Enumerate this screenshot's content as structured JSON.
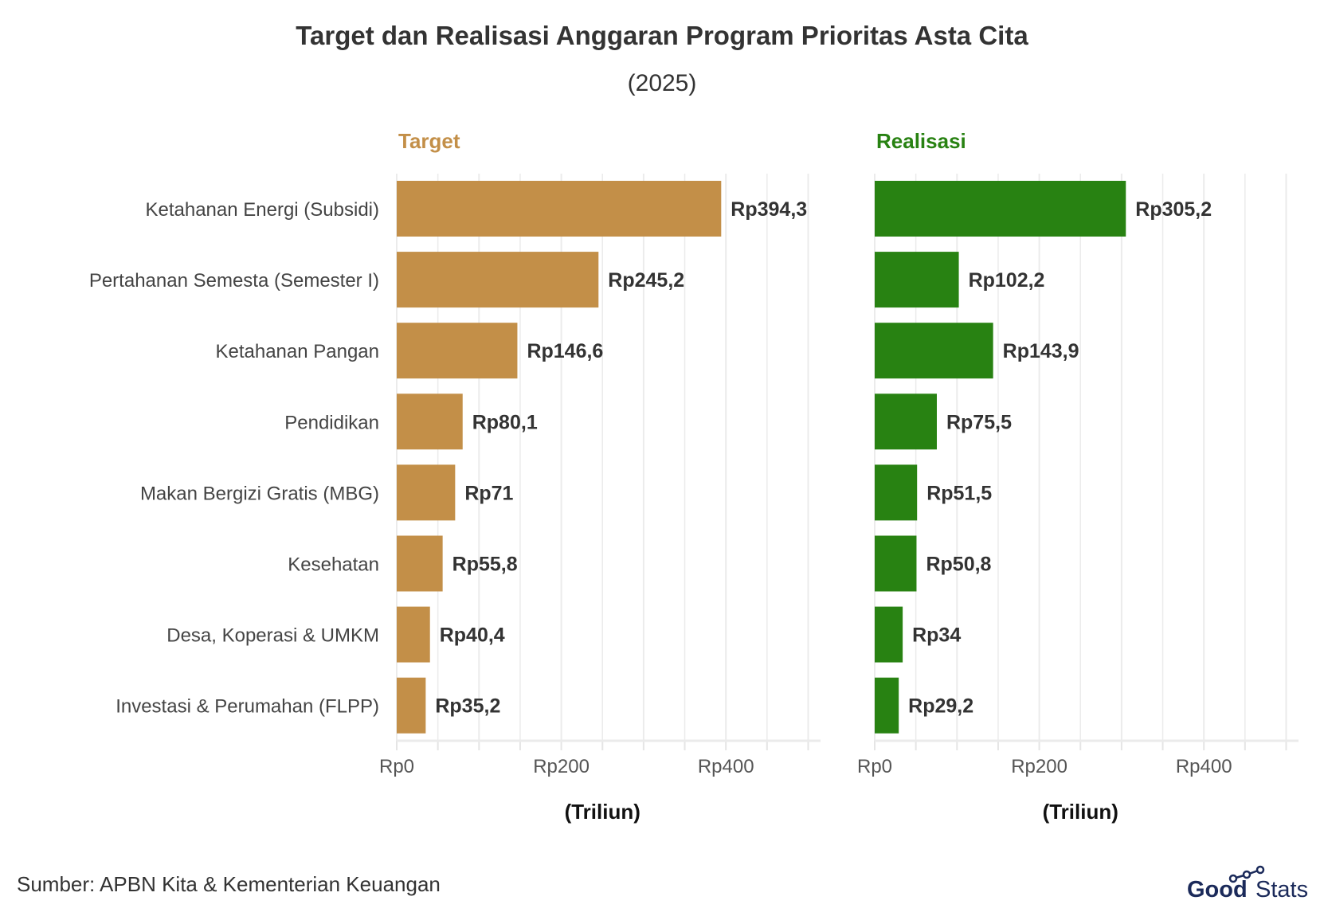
{
  "chart_data": {
    "type": "bar",
    "orientation": "horizontal",
    "title": "Target dan Realisasi Anggaran Program Prioritas Asta Cita",
    "subtitle": "(2025)",
    "categories": [
      "Ketahanan Energi (Subsidi)",
      "Pertahanan Semesta (Semester I)",
      "Ketahanan Pangan",
      "Pendidikan",
      "Makan Bergizi Gratis (MBG)",
      "Kesehatan",
      "Desa, Koperasi & UMKM",
      "Investasi & Perumahan (FLPP)"
    ],
    "panels": [
      {
        "name": "Target",
        "color": "#C38F48",
        "values": [
          394.3,
          245.2,
          146.6,
          80.1,
          71,
          55.8,
          40.4,
          35.2
        ],
        "labels": [
          "Rp394,3",
          "Rp245,2",
          "Rp146,6",
          "Rp80,1",
          "Rp71",
          "Rp55,8",
          "Rp40,4",
          "Rp35,2"
        ]
      },
      {
        "name": "Realisasi",
        "color": "#288212",
        "values": [
          305.2,
          102.2,
          143.9,
          75.5,
          51.5,
          50.8,
          34,
          29.2
        ],
        "labels": [
          "Rp305,2",
          "Rp102,2",
          "Rp143,9",
          "Rp75,5",
          "Rp51,5",
          "Rp50,8",
          "Rp34",
          "Rp29,2"
        ]
      }
    ],
    "xlabel": "(Triliun)",
    "xticks": [
      0,
      200,
      400
    ],
    "xtick_labels": [
      "Rp0",
      "Rp200",
      "Rp400"
    ],
    "xlim": [
      0,
      515
    ],
    "grid": true
  },
  "source": "Sumber: APBN Kita & Kementerian Keuangan",
  "logo": {
    "text_bold": "Good",
    "text_light": "Stats",
    "color": "#1B2A5A"
  }
}
